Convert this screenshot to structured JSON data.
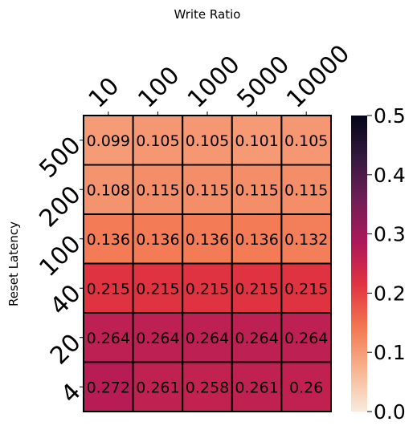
{
  "chart_data": {
    "type": "heatmap",
    "title": "",
    "xlabel": "Write Ratio",
    "ylabel": "Reset Latency",
    "x_categories": [
      "10",
      "100",
      "1000",
      "5000",
      "10000"
    ],
    "y_categories": [
      "500",
      "200",
      "100",
      "40",
      "20",
      "4"
    ],
    "values": [
      [
        0.099,
        0.105,
        0.105,
        0.101,
        0.105
      ],
      [
        0.108,
        0.115,
        0.115,
        0.115,
        0.115
      ],
      [
        0.136,
        0.136,
        0.136,
        0.136,
        0.132
      ],
      [
        0.215,
        0.215,
        0.215,
        0.215,
        0.215
      ],
      [
        0.264,
        0.264,
        0.264,
        0.264,
        0.264
      ],
      [
        0.272,
        0.261,
        0.258,
        0.261,
        0.26
      ]
    ],
    "cell_labels": [
      [
        "0.099",
        "0.105",
        "0.105",
        "0.101",
        "0.105"
      ],
      [
        "0.108",
        "0.115",
        "0.115",
        "0.115",
        "0.115"
      ],
      [
        "0.136",
        "0.136",
        "0.136",
        "0.136",
        "0.132"
      ],
      [
        "0.215",
        "0.215",
        "0.215",
        "0.215",
        "0.215"
      ],
      [
        "0.264",
        "0.264",
        "0.264",
        "0.264",
        "0.264"
      ],
      [
        "0.272",
        "0.261",
        "0.258",
        "0.261",
        "0.26"
      ]
    ],
    "colorbar": {
      "vmin": 0.0,
      "vmax": 0.5,
      "ticks": [
        0.0,
        0.1,
        0.2,
        0.3,
        0.4,
        0.5
      ],
      "tick_labels": [
        "0.0",
        "0.1",
        "0.2",
        "0.3",
        "0.4",
        "0.5"
      ],
      "colormap": "rocket_r",
      "colormap_stops": [
        "#faebdd",
        "#f6b48f",
        "#f37651",
        "#e13342",
        "#ad1759",
        "#701f57",
        "#35193e",
        "#03051a"
      ]
    },
    "x_axis_position": "top",
    "grid": false,
    "cell_border_color": "#000000"
  }
}
